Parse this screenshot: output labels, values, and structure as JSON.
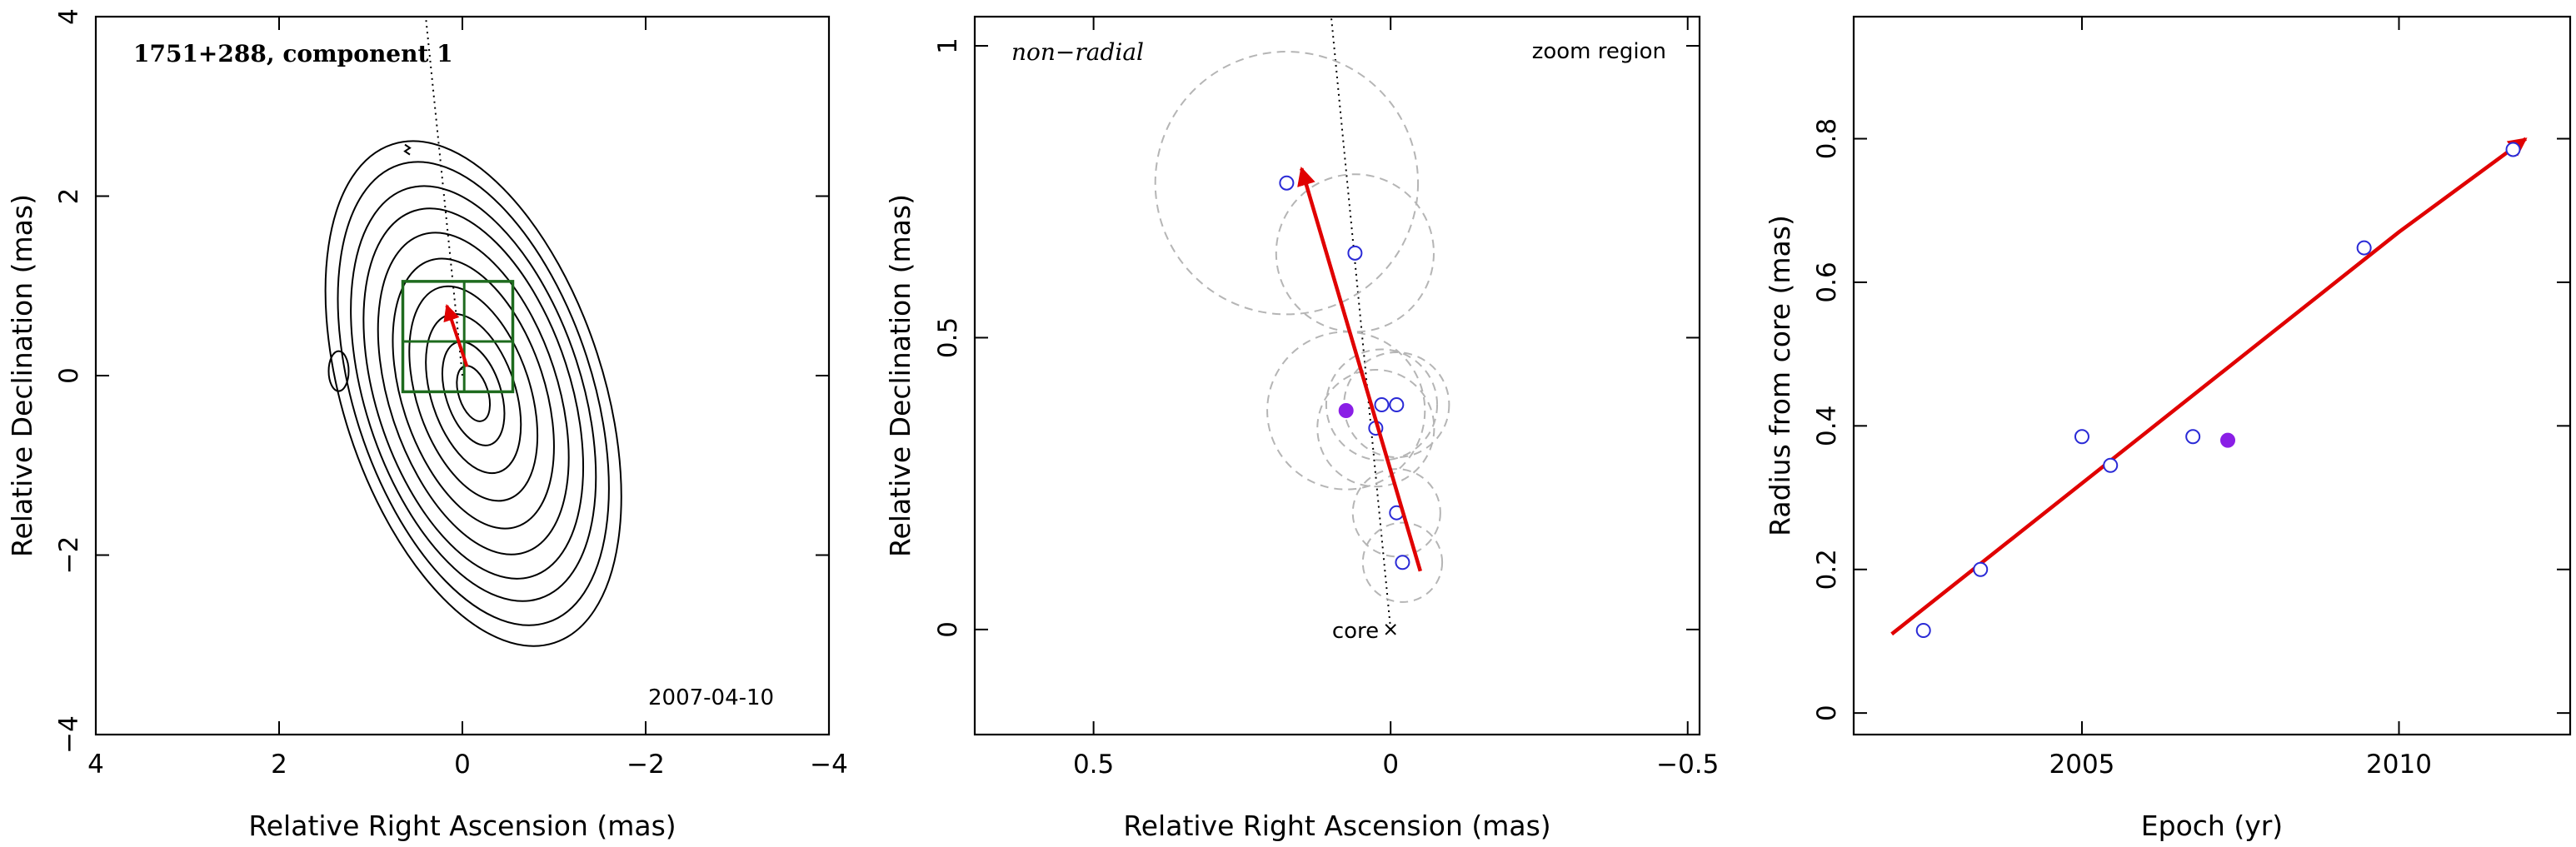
{
  "chart_data": [
    {
      "type": "contour",
      "title": "1751+288, component 1",
      "xlabel": "Relative Right Ascension (mas)",
      "ylabel": "Relative Declination (mas)",
      "xlim": [
        4,
        -4
      ],
      "ylim": [
        -4,
        4
      ],
      "xticks": [
        4,
        2,
        0,
        -2,
        -4
      ],
      "yticks": [
        -4,
        -2,
        0,
        2,
        4
      ],
      "xtick_labels": [
        "4",
        "2",
        "0",
        "−2",
        "−4"
      ],
      "ytick_labels": [
        "−4",
        "−2",
        "0",
        "2",
        "4"
      ],
      "date": "2007-04-10",
      "contours": {
        "center": [
          -0.12,
          -0.2
        ],
        "sizes": [
          [
            0.16,
            0.32
          ],
          [
            0.3,
            0.6
          ],
          [
            0.46,
            0.92
          ],
          [
            0.62,
            1.24
          ],
          [
            0.78,
            1.56
          ],
          [
            0.92,
            1.86
          ],
          [
            1.06,
            2.14
          ],
          [
            1.18,
            2.4
          ],
          [
            1.3,
            2.68
          ],
          [
            1.42,
            2.92
          ]
        ],
        "tilt_deg": -18,
        "islands": [
          [
            1.35,
            0.05
          ],
          [
            0.6,
            2.5
          ]
        ]
      },
      "zoom_box": {
        "ra": [
          0.65,
          -0.55
        ],
        "dec": [
          -0.18,
          1.05
        ],
        "mid_ra": -0.02,
        "mid_dec": 0.38
      },
      "velocity_vector": {
        "from": [
          -0.05,
          0.1
        ],
        "to": [
          0.17,
          0.78
        ]
      },
      "radial_line": {
        "from": [
          0,
          0
        ],
        "to": [
          0.4,
          4.0
        ]
      }
    },
    {
      "type": "scatter",
      "xlabel": "Relative Right Ascension (mas)",
      "ylabel": "Relative Declination (mas)",
      "xlim": [
        0.7,
        -0.52
      ],
      "ylim": [
        -0.18,
        1.05
      ],
      "xticks": [
        0.5,
        0,
        -0.5
      ],
      "yticks": [
        0,
        0.5,
        1
      ],
      "xtick_labels": [
        "0.5",
        "0",
        "−0.5"
      ],
      "ytick_labels": [
        "0",
        "0.5",
        "1"
      ],
      "annotation_left": "non−radial",
      "annotation_right": "zoom region",
      "core_label": "core",
      "core_position": [
        0,
        0
      ],
      "points": [
        {
          "ra": 0.175,
          "dec": 0.765,
          "radius": 0.225,
          "filled": false
        },
        {
          "ra": 0.06,
          "dec": 0.645,
          "radius": 0.135,
          "filled": false
        },
        {
          "ra": 0.015,
          "dec": 0.385,
          "radius": 0.095,
          "filled": false
        },
        {
          "ra": -0.01,
          "dec": 0.385,
          "radius": 0.09,
          "filled": false
        },
        {
          "ra": 0.025,
          "dec": 0.345,
          "radius": 0.1,
          "filled": false
        },
        {
          "ra": 0.075,
          "dec": 0.375,
          "radius": 0.135,
          "filled": true
        },
        {
          "ra": -0.01,
          "dec": 0.2,
          "radius": 0.075,
          "filled": false
        },
        {
          "ra": -0.02,
          "dec": 0.115,
          "radius": 0.068,
          "filled": false
        }
      ],
      "velocity_vector": {
        "from": [
          -0.05,
          0.1
        ],
        "to": [
          0.15,
          0.79
        ]
      },
      "radial_line": {
        "from": [
          0,
          0
        ],
        "to": [
          0.1,
          1.05
        ]
      }
    },
    {
      "type": "scatter",
      "xlabel": "Epoch (yr)",
      "ylabel": "Radius from core (mas)",
      "xlim": [
        2001.4,
        2012.7
      ],
      "ylim": [
        -0.03,
        0.97
      ],
      "xticks": [
        2005,
        2010
      ],
      "yticks": [
        0,
        0.2,
        0.4,
        0.6,
        0.8
      ],
      "xtick_labels": [
        "2005",
        "2010"
      ],
      "ytick_labels": [
        "0",
        "0.2",
        "0.4",
        "0.6",
        "0.8"
      ],
      "points": [
        {
          "epoch": 2002.5,
          "radius": 0.115,
          "filled": false
        },
        {
          "epoch": 2003.4,
          "radius": 0.2,
          "filled": false
        },
        {
          "epoch": 2005.0,
          "radius": 0.385,
          "filled": false
        },
        {
          "epoch": 2005.45,
          "radius": 0.345,
          "filled": false
        },
        {
          "epoch": 2006.75,
          "radius": 0.385,
          "filled": false
        },
        {
          "epoch": 2007.3,
          "radius": 0.38,
          "filled": true
        },
        {
          "epoch": 2009.45,
          "radius": 0.648,
          "filled": false
        },
        {
          "epoch": 2011.8,
          "radius": 0.785,
          "filled": false
        }
      ],
      "fit": [
        [
          2002.0,
          0.11
        ],
        [
          2004.0,
          0.25
        ],
        [
          2006.0,
          0.39
        ],
        [
          2008.0,
          0.53
        ],
        [
          2010.0,
          0.67
        ],
        [
          2012.0,
          0.8
        ]
      ]
    }
  ],
  "colors": {
    "vector": "#e00000",
    "point_edge": "#2a2ad6",
    "point_filled": "#8a1fe6",
    "circle": "#b5b5b5",
    "zoom_box": "#1e6b1e",
    "contour": "#000000"
  }
}
